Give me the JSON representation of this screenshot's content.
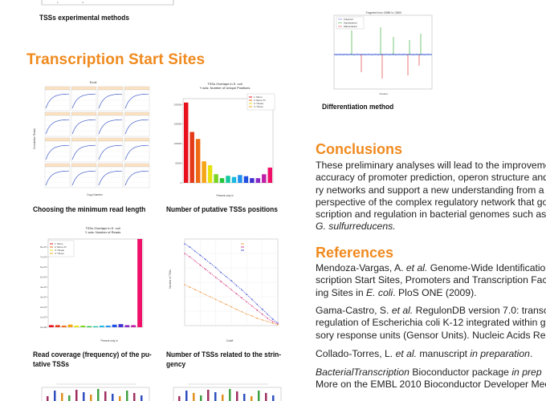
{
  "captions": {
    "top_left": "TSSs experimental methods",
    "differentiation": "Differentiation method",
    "min_read": "Choosing the minimum read length",
    "putative": "Number of putative TSSs positions",
    "coverage_l1": "Read coverage (frequency) of the pu-",
    "coverage_l2": "tative TSSs",
    "stringency_l1": "Number of TSSs related to the strin-",
    "stringency_l2": "gency"
  },
  "section_title": "Transcription Start Sites",
  "conclusions": {
    "title": "Conclusions",
    "lines": [
      "These preliminary analyses will lead to the improveme",
      "accuracy of promoter prediction, operon structure and r",
      "ry networks and support a new understanding from a",
      "perspective of the complex regulatory network that gove",
      "scription and regulation in bacterial genomes such as E.",
      "G. sulfurreducens."
    ]
  },
  "references": {
    "title": "References",
    "r1": [
      "Mendoza-Vargas, A. ",
      "et al.",
      " Genome-Wide Identification",
      "scription Start Sites, Promoters and Transcription Fact",
      "ing Sites in ",
      "E. coli",
      ". PloS ONE (2009)."
    ],
    "r2": [
      "Gama-Castro, S. ",
      "et al.",
      " RegulonDB version 7.0: transc",
      "regulation of Escherichia coli K-12 integrated within gene",
      "sory response units (Gensor Units). Nucleic Acids Res"
    ],
    "r3": [
      "Collado-Torres, L. ",
      "et al.",
      " manuscript ",
      "in preparation",
      "."
    ],
    "r4": [
      "BacterialTranscription",
      " Bioconductor package ",
      "in prep",
      "More on the EMBL 2010 Bioconductor Developer Meet"
    ]
  },
  "figures": {
    "ecoli_grid": {
      "title": "Ecoli",
      "ylabel": "Cumulative Reads",
      "xlabel": "Copy Number"
    },
    "putative_bar": {
      "title_l1": "TSSs Overlape in E. coli",
      "title_l2": "Y axis: Number of Unique Positions",
      "xlabel": "Present only in",
      "legend": [
        "1: Mono",
        "2: Mono-Tri",
        "3: TriLate",
        "4: TriLive"
      ]
    },
    "coverage_bar": {
      "title_l1": "TSSs Overlape in E. coli",
      "title_l2": "Y axis: Number of Reads",
      "xlabel": "Present only in",
      "legend": [
        "1: Mono",
        "2: Mono-Tri",
        "3: TriLate",
        "4: TriLive"
      ],
      "yticks": [
        "8e+07",
        "7e+07",
        "6e+07",
        "5e+07",
        "4e+07",
        "3e+07",
        "2e+07",
        "1e+07",
        "0e+00"
      ]
    },
    "stringency_line": {
      "ylabel": "Number of TSSs",
      "xlabel": "Cutoff"
    },
    "differentiation_plot": {
      "title": "Fragment from 1358K to 1360K",
      "legend": [
        "Fragment",
        "Standardized",
        "Differentiated"
      ],
      "xlabel": "Position"
    }
  },
  "chart_data": [
    {
      "type": "bar",
      "title": "TSSs Overlape in E. coli",
      "subtitle": "Y axis: Number of Unique Positions",
      "xlabel": "Present only in",
      "ylabel": "",
      "yticks": [
        0,
        50000,
        100000,
        150000,
        200000
      ],
      "ylim": [
        0,
        215000
      ],
      "values": [
        205000,
        130000,
        112000,
        55000,
        45000,
        22000,
        12000,
        18000,
        15000,
        20000,
        17000,
        12000,
        12000,
        22000,
        39000
      ],
      "colors": [
        "#e8101c",
        "#e53a18",
        "#ee6a14",
        "#f5a414",
        "#e6e212",
        "#7ad420",
        "#22c43a",
        "#16c8a0",
        "#18b8e0",
        "#2090f0",
        "#2050e0",
        "#4030d0",
        "#8a28c8",
        "#c020a8",
        "#f0106a"
      ]
    },
    {
      "type": "bar",
      "title": "TSSs Overlape in E. coli",
      "subtitle": "Y axis: Number of Reads",
      "xlabel": "Present only in",
      "ylabel": "",
      "ylim": [
        0,
        85000000
      ],
      "values": [
        2000000,
        2000000,
        1500000,
        2500000,
        1500000,
        1500000,
        1000000,
        1000000,
        1500000,
        1500000,
        2500000,
        3000000,
        2000000,
        2000000,
        85000000
      ],
      "colors": [
        "#e8101c",
        "#e53a18",
        "#ee6a14",
        "#f5a414",
        "#e6e212",
        "#7ad420",
        "#22c43a",
        "#16c8a0",
        "#18b8e0",
        "#2090f0",
        "#2050e0",
        "#4030d0",
        "#8a28c8",
        "#c020a8",
        "#f0106a"
      ]
    },
    {
      "type": "line",
      "xlabel": "Cutoff",
      "ylabel": "Number of TSSs",
      "series": [
        {
          "color": "#4a5cd8",
          "values": [
            100,
            96,
            91,
            86,
            81,
            76,
            71,
            65,
            60,
            55,
            49,
            44,
            38,
            32,
            26,
            20,
            14,
            8,
            3
          ]
        },
        {
          "color": "#d84a8a",
          "values": [
            88,
            84,
            79,
            74,
            69,
            64,
            59,
            54,
            49,
            44,
            39,
            34,
            29,
            24,
            19,
            14,
            9,
            5,
            2
          ]
        },
        {
          "color": "#f0a050",
          "values": [
            50,
            47,
            44,
            41,
            38,
            35,
            32,
            29,
            26,
            23,
            20,
            17,
            14,
            12,
            9,
            7,
            5,
            3,
            1
          ]
        }
      ]
    }
  ]
}
